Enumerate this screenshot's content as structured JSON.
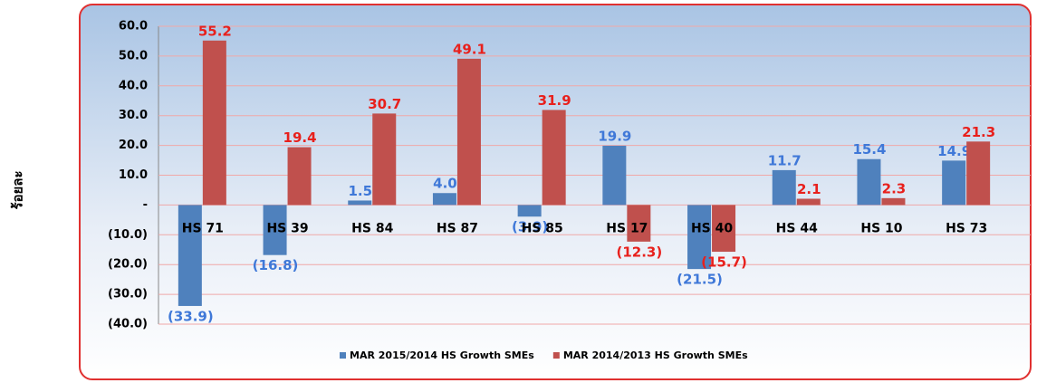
{
  "chart_data": {
    "type": "bar",
    "y_label": "ร้อยละ",
    "categories": [
      "HS 71",
      "HS 39",
      "HS 84",
      "HS 87",
      "HS 85",
      "HS 17",
      "HS 40",
      "HS 44",
      "HS 10",
      "HS 73"
    ],
    "series": [
      {
        "name": "MAR 2015/2014 HS Growth SMEs",
        "color": "#4f81bd",
        "label_color": "#3f78d8",
        "values": [
          -33.9,
          -16.8,
          1.5,
          4.0,
          -3.9,
          19.9,
          -21.5,
          11.7,
          15.4,
          14.9
        ],
        "value_labels": [
          "(33.9)",
          "(16.8)",
          "1.5",
          "4.0",
          "(3.9)",
          "19.9",
          "(21.5)",
          "11.7",
          "15.4",
          "14.9"
        ]
      },
      {
        "name": "MAR 2014/2013 HS Growth SMEs",
        "color": "#c0504d",
        "label_color": "#e8201c",
        "values": [
          55.2,
          19.4,
          30.7,
          49.1,
          31.9,
          -12.3,
          -15.7,
          2.1,
          2.3,
          21.3
        ],
        "value_labels": [
          "55.2",
          "19.4",
          "30.7",
          "49.1",
          "31.9",
          "(12.3)",
          "(15.7)",
          "2.1",
          "2.3",
          "21.3"
        ]
      }
    ],
    "ylim": [
      -40,
      60
    ],
    "yticks": [
      {
        "value": 60,
        "label": "60.0"
      },
      {
        "value": 50,
        "label": "50.0"
      },
      {
        "value": 40,
        "label": "40.0"
      },
      {
        "value": 30,
        "label": "30.0"
      },
      {
        "value": 20,
        "label": "20.0"
      },
      {
        "value": 10,
        "label": "10.0"
      },
      {
        "value": 0,
        "label": "-"
      },
      {
        "value": -10,
        "label": "(10.0)"
      },
      {
        "value": -20,
        "label": "(20.0)"
      },
      {
        "value": -30,
        "label": "(30.0)"
      },
      {
        "value": -40,
        "label": "(40.0)"
      }
    ],
    "grid": true,
    "legend": "bottom"
  }
}
